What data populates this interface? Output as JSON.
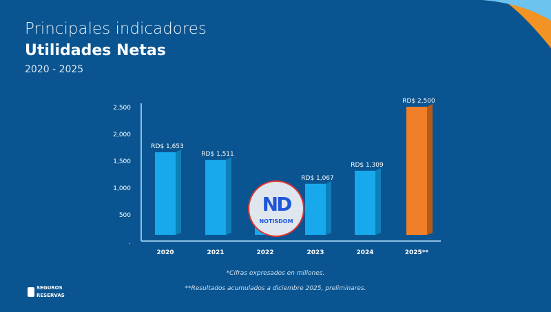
{
  "header": {
    "title": "Principales indicadores",
    "subtitle": "Utilidades Netas",
    "period": "2020 - 2025"
  },
  "chart_data": {
    "type": "bar",
    "categories": [
      "2020",
      "2021",
      "2022",
      "2023",
      "2024",
      "2025**"
    ],
    "values": [
      1653,
      1511,
      850,
      1067,
      1309,
      2500
    ],
    "data_labels": [
      "RD$ 1,653",
      "RD$ 1,511",
      "",
      "RD$ 1,067",
      "RD$ 1,309",
      "RD$ 2,500"
    ],
    "yticks": [
      ".",
      "500",
      "1,000",
      "1,500",
      "2,000",
      "2,500"
    ],
    "ylim": [
      0,
      2500
    ],
    "grid": false,
    "colors": {
      "default": "#17a9ec",
      "highlight": "#f07f27",
      "background": "#0a5591"
    }
  },
  "notes": {
    "n1": "*Cifras expresados en millones.",
    "n2": "**Resultados acumulados a diciembre 2025, preliminares."
  },
  "logo": {
    "line1": "SEGUROS",
    "line2": "RESERVAS"
  },
  "watermark": {
    "mark": "ND",
    "text": "NOTISDOM"
  }
}
